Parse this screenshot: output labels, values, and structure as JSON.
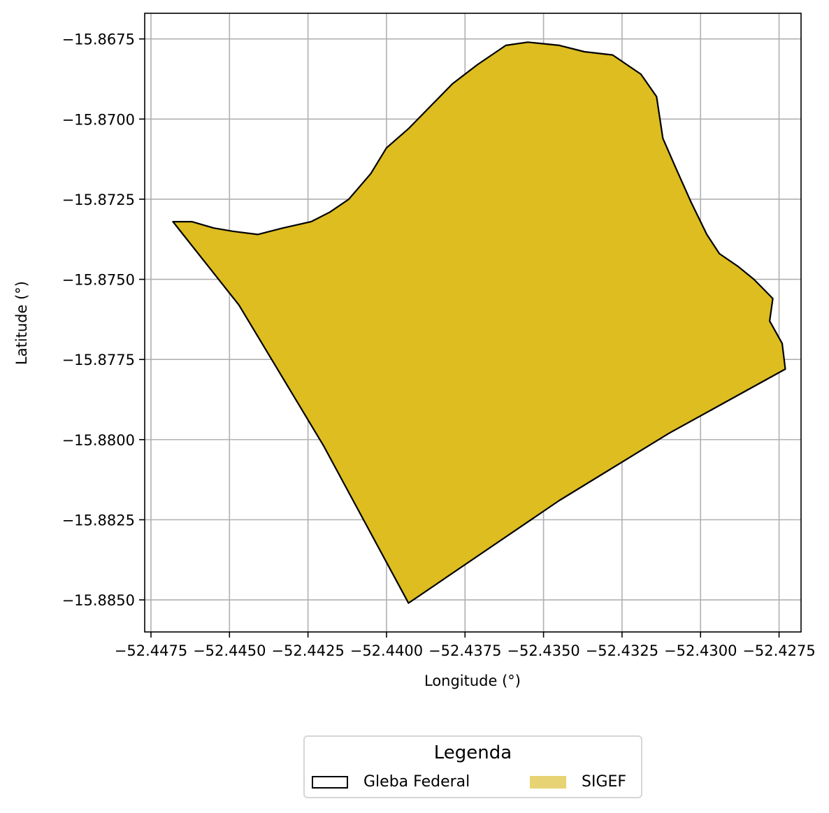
{
  "chart_data": {
    "type": "map",
    "xlabel": "Longitude (°)",
    "ylabel": "Latitude (°)",
    "xlim": [
      -52.4477,
      -52.4268
    ],
    "ylim": [
      -15.886,
      -15.8667
    ],
    "grid": true,
    "xticks": [
      -52.4475,
      -52.445,
      -52.4425,
      -52.44,
      -52.4375,
      -52.435,
      -52.4325,
      -52.43,
      -52.4275
    ],
    "xtick_labels": [
      "−52.4475",
      "−52.4450",
      "−52.4425",
      "−52.4400",
      "−52.4375",
      "−52.4350",
      "−52.4325",
      "−52.4300",
      "−52.4275"
    ],
    "yticks": [
      -15.8675,
      -15.87,
      -15.8725,
      -15.875,
      -15.8775,
      -15.88,
      -15.8825,
      -15.885
    ],
    "ytick_labels": [
      "−15.8675",
      "−15.8700",
      "−15.8725",
      "−15.8750",
      "−15.8775",
      "−15.8800",
      "−15.8825",
      "−15.8850"
    ],
    "series": [
      {
        "name": "SIGEF",
        "fill": "#ddbd20",
        "legend_fill": "#e8d374",
        "stroke": "#000000",
        "polygon": [
          [
            -52.4468,
            -15.8732
          ],
          [
            -52.4462,
            -15.8732
          ],
          [
            -52.4455,
            -15.8734
          ],
          [
            -52.4449,
            -15.8735
          ],
          [
            -52.4441,
            -15.8736
          ],
          [
            -52.4433,
            -15.8734
          ],
          [
            -52.4424,
            -15.8732
          ],
          [
            -52.4418,
            -15.8729
          ],
          [
            -52.4412,
            -15.8725
          ],
          [
            -52.4405,
            -15.8717
          ],
          [
            -52.44,
            -15.8709
          ],
          [
            -52.4393,
            -15.8703
          ],
          [
            -52.4386,
            -15.8696
          ],
          [
            -52.4379,
            -15.8689
          ],
          [
            -52.4371,
            -15.8683
          ],
          [
            -52.4362,
            -15.8677
          ],
          [
            -52.4355,
            -15.8676
          ],
          [
            -52.4345,
            -15.8677
          ],
          [
            -52.4337,
            -15.8679
          ],
          [
            -52.4328,
            -15.868
          ],
          [
            -52.4319,
            -15.8686
          ],
          [
            -52.4314,
            -15.8693
          ],
          [
            -52.4312,
            -15.8706
          ],
          [
            -52.4308,
            -15.8715
          ],
          [
            -52.4303,
            -15.8726
          ],
          [
            -52.4298,
            -15.8736
          ],
          [
            -52.4294,
            -15.8742
          ],
          [
            -52.4288,
            -15.8746
          ],
          [
            -52.4283,
            -15.875
          ],
          [
            -52.4279,
            -15.8754
          ],
          [
            -52.4277,
            -15.8756
          ],
          [
            -52.4278,
            -15.8763
          ],
          [
            -52.4274,
            -15.877
          ],
          [
            -52.4273,
            -15.8778
          ],
          [
            -52.431,
            -15.8798
          ],
          [
            -52.4345,
            -15.8819
          ],
          [
            -52.439,
            -15.8849
          ],
          [
            -52.4393,
            -15.8851
          ],
          [
            -52.442,
            -15.8802
          ],
          [
            -52.4447,
            -15.8758
          ],
          [
            -52.4468,
            -15.8732
          ]
        ]
      }
    ],
    "legend": {
      "title": "Legenda",
      "placement": "bottom-center",
      "entries": [
        {
          "label": "Gleba Federal",
          "style": "outline"
        },
        {
          "label": "SIGEF",
          "style": "filled"
        }
      ]
    }
  }
}
